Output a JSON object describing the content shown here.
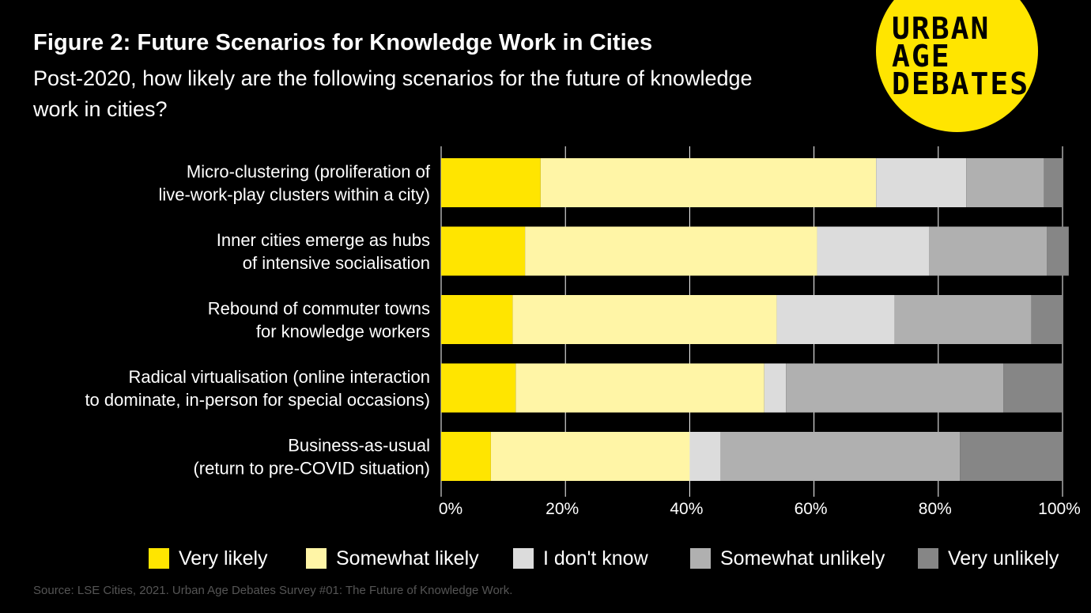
{
  "header": {
    "title": "Figure 2: Future Scenarios for Knowledge Work in Cities",
    "subtitle": "Post-2020, how likely are the following scenarios for the future of knowledge work in cities?"
  },
  "logo": {
    "line1": "URBAN",
    "line2": "AGE",
    "line3": "DEBATES"
  },
  "source": "Source: LSE Cities, 2021. Urban Age Debates Survey #01: The Future of Knowledge Work.",
  "chart_data": {
    "type": "bar",
    "orientation": "horizontal",
    "stacked": true,
    "title": "Figure 2: Future Scenarios for Knowledge Work in Cities",
    "subtitle": "Post-2020, how likely are the following scenarios for the future of knowledge work in cities?",
    "categories": [
      [
        "Micro-clustering (proliferation of",
        "live-work-play clusters within a city)"
      ],
      [
        "Inner cities emerge as hubs",
        "of intensive socialisation"
      ],
      [
        "Rebound of commuter towns",
        "for knowledge workers"
      ],
      [
        "Radical virtualisation (online interaction",
        "to dominate, in-person for special occasions)"
      ],
      [
        "Business-as-usual",
        "(return to pre-COVID situation)"
      ]
    ],
    "series": [
      {
        "name": "Very likely",
        "color": "#ffe500",
        "values": [
          16,
          13.5,
          11.5,
          12,
          8
        ]
      },
      {
        "name": "Somewhat likely",
        "color": "#fff5a6",
        "values": [
          54,
          47,
          42.5,
          40,
          32
        ]
      },
      {
        "name": "I don't know",
        "color": "#dcdcdc",
        "values": [
          14.5,
          18,
          19,
          3.5,
          5
        ]
      },
      {
        "name": "Somewhat unlikely",
        "color": "#b0b0b0",
        "values": [
          12.5,
          19,
          22,
          35,
          38.5
        ]
      },
      {
        "name": "Very unlikely",
        "color": "#868686",
        "values": [
          3,
          3.5,
          5,
          9.5,
          16.5
        ]
      }
    ],
    "xticks": [
      "0%",
      "20%",
      "40%",
      "60%",
      "80%",
      "100%"
    ],
    "xlim": [
      0,
      100
    ],
    "grid": true,
    "legend_position": "bottom"
  }
}
